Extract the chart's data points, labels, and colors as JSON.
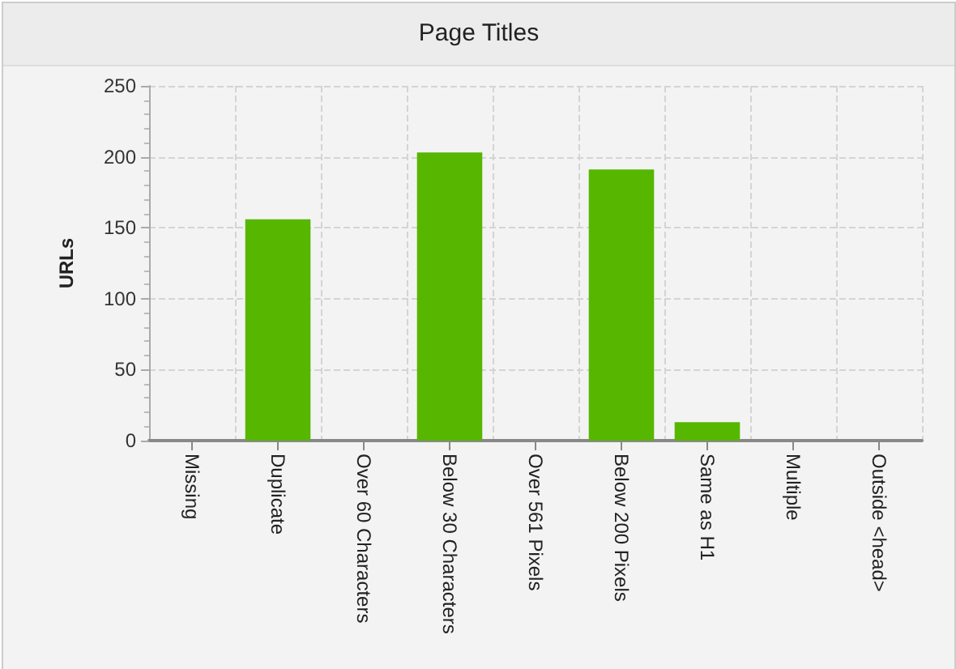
{
  "chart_data": {
    "type": "bar",
    "title": "Page Titles",
    "ylabel": "URLs",
    "categories": [
      "Missing",
      "Duplicate",
      "Over 60 Characters",
      "Below 30 Characters",
      "Over 561 Pixels",
      "Below 200 Pixels",
      "Same as H1",
      "Multiple",
      "Outside <head>"
    ],
    "values": [
      0,
      156,
      0,
      203,
      0,
      191,
      13,
      0,
      0
    ],
    "color": "#56b600",
    "ylim": [
      0,
      250
    ],
    "yticks": [
      0,
      50,
      100,
      150,
      200,
      250
    ],
    "grid": true
  }
}
